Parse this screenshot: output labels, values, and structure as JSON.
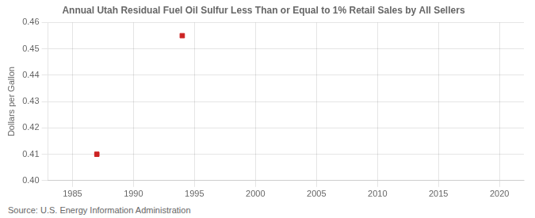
{
  "chart_data": {
    "type": "scatter",
    "title": "Annual Utah Residual Fuel Oil Sulfur Less Than or Equal to 1% Retail Sales by All Sellers",
    "ylabel": "Dollars per Gallon",
    "source": "Source: U.S. Energy Information Administration",
    "x": [
      1987,
      1994
    ],
    "values": [
      0.41,
      0.455
    ],
    "color": "#cc2222",
    "marker": "square",
    "xlim": [
      1983,
      2022
    ],
    "ylim": [
      0.4,
      0.46
    ],
    "xticks": [
      1985,
      1990,
      1995,
      2000,
      2005,
      2010,
      2015,
      2020
    ],
    "yticks": [
      {
        "value": 0.4,
        "label": "0.40"
      },
      {
        "value": 0.41,
        "label": "0.41"
      },
      {
        "value": 0.42,
        "label": "0.42"
      },
      {
        "value": 0.43,
        "label": "0.43"
      },
      {
        "value": 0.44,
        "label": "0.44"
      },
      {
        "value": 0.45,
        "label": "0.45"
      },
      {
        "value": 0.46,
        "label": "0.46"
      }
    ],
    "grid": true
  }
}
